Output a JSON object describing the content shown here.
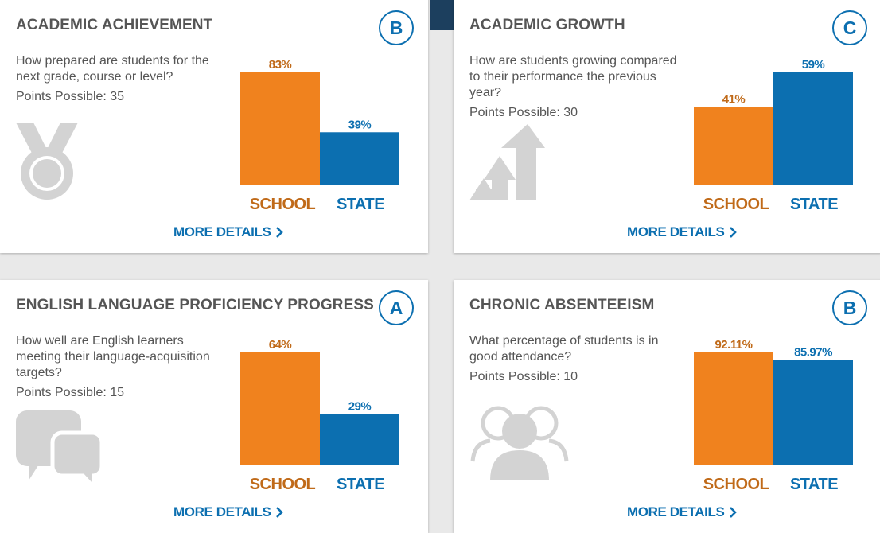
{
  "colors": {
    "school": "#f0821e",
    "state": "#0c6fb0",
    "school_label": "#c06a19",
    "state_label": "#0c6fb0",
    "title": "#555555",
    "icon": "#d3d3d3"
  },
  "chart_labels": {
    "school": "SCHOOL",
    "state": "STATE"
  },
  "cards": [
    {
      "title": "ACADEMIC ACHIEVEMENT",
      "grade": "B",
      "question": "How prepared are students for the next grade, course or level?",
      "points": "Points Possible: 35",
      "icon": "medal-icon",
      "school_label": "83%",
      "state_label": "39%",
      "more": "MORE DETAILS"
    },
    {
      "title": "ACADEMIC GROWTH",
      "grade": "C",
      "question": "How are students growing compared to their performance the previous year?",
      "points": "Points Possible: 30",
      "icon": "growth-arrows-icon",
      "school_label": "41%",
      "state_label": "59%",
      "more": "MORE DETAILS"
    },
    {
      "title": "ENGLISH LANGUAGE PROFICIENCY PROGRESS",
      "grade": "A",
      "question": "How well are English learners meeting their language-acquisition targets?",
      "points": "Points Possible: 15",
      "icon": "speech-bubbles-icon",
      "school_label": "64%",
      "state_label": "29%",
      "more": "MORE DETAILS"
    },
    {
      "title": "CHRONIC ABSENTEEISM",
      "grade": "B",
      "question": "What percentage of students is in good attendance?",
      "points": "Points Possible: 10",
      "icon": "people-icon",
      "school_label": "92.11%",
      "state_label": "85.97%",
      "more": "MORE DETAILS"
    }
  ],
  "chart_data": [
    {
      "type": "bar",
      "title": "",
      "categories": [
        "SCHOOL",
        "STATE"
      ],
      "values": [
        83,
        39
      ],
      "ylim": [
        0,
        83
      ]
    },
    {
      "type": "bar",
      "title": "",
      "categories": [
        "SCHOOL",
        "STATE"
      ],
      "values": [
        41,
        59
      ],
      "ylim": [
        0,
        59
      ]
    },
    {
      "type": "bar",
      "title": "",
      "categories": [
        "SCHOOL",
        "STATE"
      ],
      "values": [
        64,
        29
      ],
      "ylim": [
        0,
        64
      ]
    },
    {
      "type": "bar",
      "title": "",
      "categories": [
        "SCHOOL",
        "STATE"
      ],
      "values": [
        92.11,
        85.97
      ],
      "ylim": [
        0,
        92.11
      ]
    }
  ]
}
